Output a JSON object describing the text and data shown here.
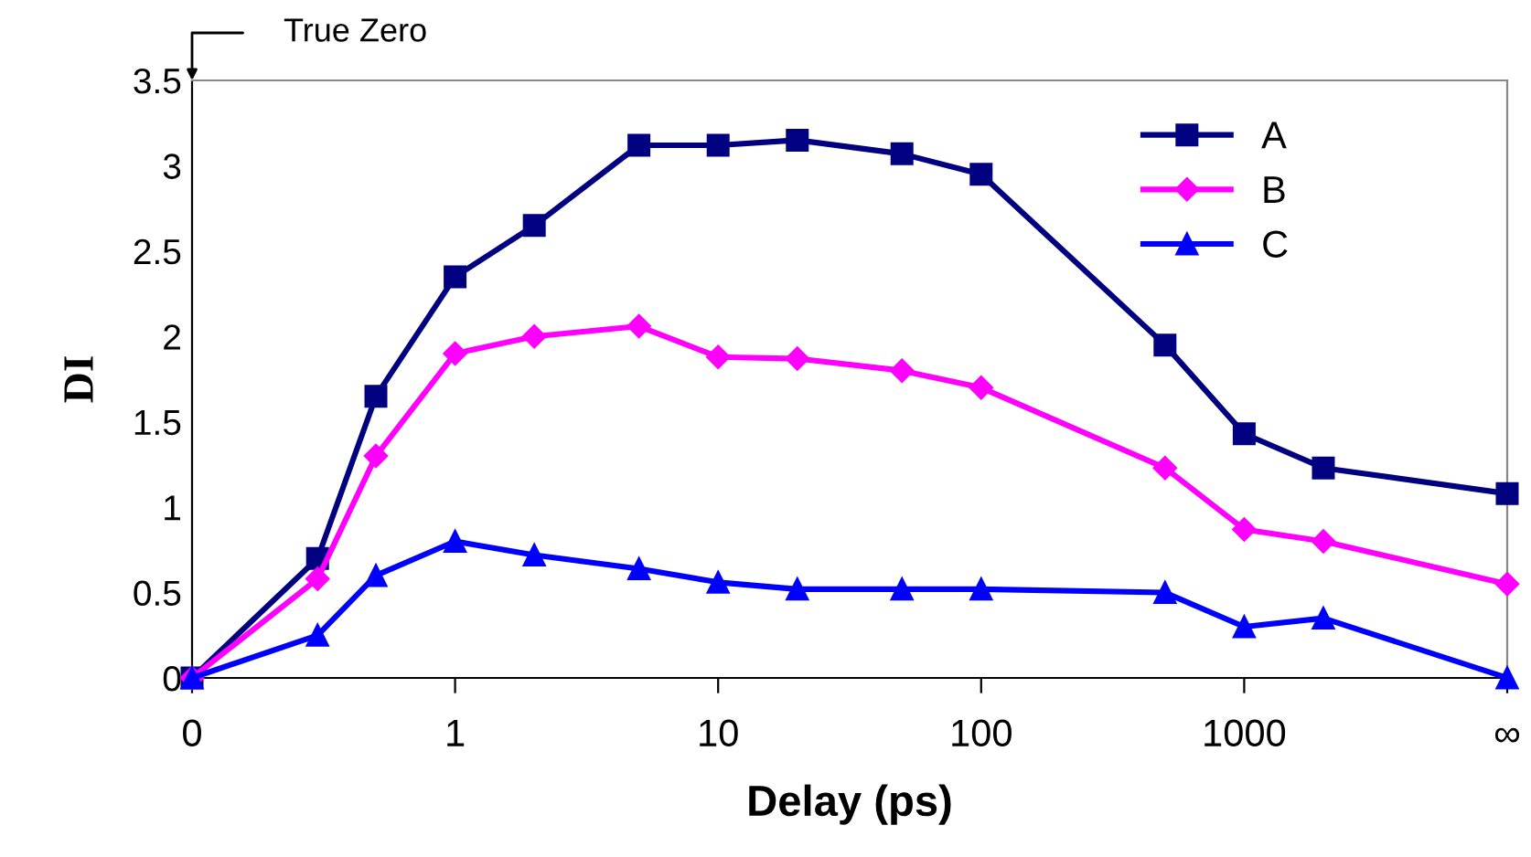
{
  "chart_data": {
    "type": "line",
    "xlabel": "Delay (ps)",
    "ylabel": "DI",
    "x": [
      0.1,
      0.3,
      0.5,
      1,
      2,
      5,
      10,
      20,
      50,
      100,
      500,
      1000,
      2000,
      10000
    ],
    "xlim": [
      0.1,
      10000
    ],
    "xticks": [
      {
        "value": 0.1,
        "label": "0"
      },
      1,
      10,
      100,
      1000,
      {
        "value": 10000,
        "label": "∞"
      }
    ],
    "ylim": [
      0,
      3.5
    ],
    "yticks": [
      0,
      0.5,
      1,
      1.5,
      2,
      2.5,
      3,
      3.5
    ],
    "series": [
      {
        "name": "A",
        "color": "#000080",
        "marker": "square",
        "values": [
          0,
          0.7,
          1.65,
          2.35,
          2.65,
          3.12,
          3.12,
          3.15,
          3.07,
          2.95,
          1.95,
          1.43,
          1.23,
          1.08
        ]
      },
      {
        "name": "B",
        "color": "#ff00ff",
        "marker": "diamond",
        "values": [
          0,
          0.58,
          1.3,
          1.9,
          2.0,
          2.06,
          1.88,
          1.87,
          1.8,
          1.7,
          1.23,
          0.87,
          0.8,
          0.55
        ]
      },
      {
        "name": "C",
        "color": "#0000ff",
        "marker": "triangle",
        "values": [
          0,
          0.25,
          0.6,
          0.8,
          0.72,
          0.64,
          0.56,
          0.52,
          0.52,
          0.52,
          0.5,
          0.3,
          0.35,
          0
        ]
      }
    ],
    "annotations": [
      "True Zero"
    ],
    "log": "x",
    "grid": false,
    "legend": "top right",
    "line_style": "solid"
  }
}
